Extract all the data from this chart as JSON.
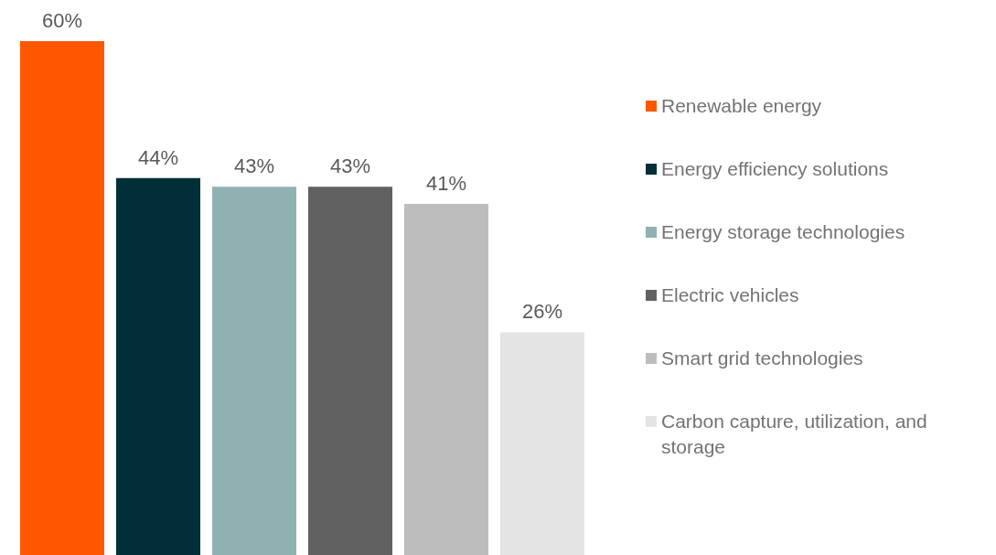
{
  "chart_data": {
    "type": "bar",
    "categories": [
      null
    ],
    "series": [
      {
        "name": "Renewable energy",
        "color": "#ff5600",
        "values": [
          60
        ],
        "value_labels": [
          "60%"
        ]
      },
      {
        "name": "Energy efficiency solutions",
        "color": "#002f37",
        "values": [
          44
        ],
        "value_labels": [
          "44%"
        ]
      },
      {
        "name": "Energy storage technologies",
        "color": "#8fb1b1",
        "values": [
          43
        ],
        "value_labels": [
          "43%"
        ]
      },
      {
        "name": "Electric vehicles",
        "color": "#616161",
        "values": [
          43
        ],
        "value_labels": [
          "43%"
        ]
      },
      {
        "name": "Smart grid technologies",
        "color": "#bdbdbd",
        "values": [
          41
        ],
        "value_labels": [
          "41%"
        ]
      },
      {
        "name": "Carbon capture, utilization, and storage",
        "color": "#e4e4e4",
        "values": [
          26
        ],
        "value_labels": [
          "26%"
        ]
      }
    ],
    "legend": "right"
  }
}
